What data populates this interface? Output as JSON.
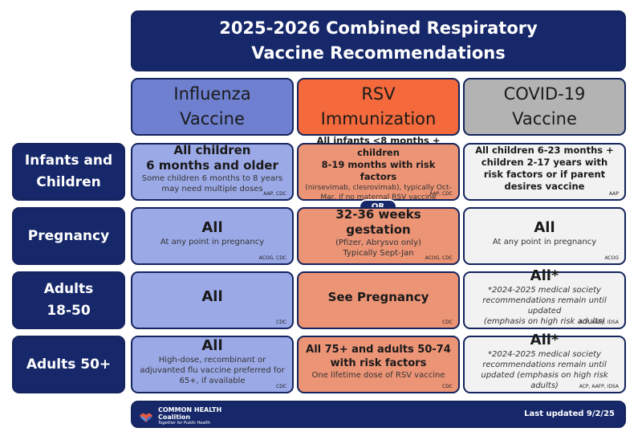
{
  "title": {
    "line1": "2025-2026 Combined Respiratory",
    "line2": "Vaccine Recommendations"
  },
  "columns": [
    {
      "line1": "Influenza",
      "line2": "Vaccine",
      "color": "#6e80cf"
    },
    {
      "line1": "RSV",
      "line2": "Immunization",
      "color": "#f46a3c"
    },
    {
      "line1": "COVID-19",
      "line2": "Vaccine",
      "color": "#b3b3b3"
    }
  ],
  "rows": [
    {
      "line1": "Infants and",
      "line2": "Children"
    },
    {
      "line1": "Pregnancy"
    },
    {
      "line1": "Adults",
      "line2": "18-50"
    },
    {
      "line1": "Adults 50+"
    }
  ],
  "cells": {
    "infants_flu": {
      "main1": "All children",
      "main2": "6 months and older",
      "sub1": "Some children 6 months to 8 years",
      "sub2": "may need multiple doses",
      "source": "AAP, CDC"
    },
    "infants_rsv": {
      "main1": "All infants <8 months + children",
      "main2": "8-19 months with risk factors",
      "sub1": "(nirsevimab, clesrovimab), typically Oct-",
      "sub2": "Mar, if no maternal RSV vaccine",
      "source": "AAP, CDC"
    },
    "infants_covid": {
      "main1": "All children 6-23 months +",
      "main2": "children 2-17 years with",
      "main3": "risk factors or if parent",
      "main4": "desires vaccine",
      "source": "AAP"
    },
    "or_label": "OR",
    "pregnancy_flu": {
      "main": "All",
      "sub": "At any point in pregnancy",
      "source": "ACOG, CDC"
    },
    "pregnancy_rsv": {
      "main": "32-36 weeks gestation",
      "sub1": "(Pfizer, Abrysvo only)",
      "sub2": "Typically Sept-Jan",
      "source": "ACOG, CDC"
    },
    "pregnancy_covid": {
      "main": "All",
      "sub": "At any point in pregnancy",
      "source": "ACOG"
    },
    "adults1850_flu": {
      "main": "All",
      "source": "CDC"
    },
    "adults1850_rsv": {
      "main": "See Pregnancy",
      "source": "CDC"
    },
    "adults1850_covid": {
      "main": "All*",
      "note1": "*2024-2025 medical society",
      "note2": "recommendations remain until updated",
      "note3": "(emphasis on high risk adults)",
      "source": "ACP, AAFP, IDSA"
    },
    "adults50_flu": {
      "main": "All",
      "sub1": "High-dose, recombinant or",
      "sub2": "adjuvanted flu vaccine preferred for",
      "sub3": "65+, if available",
      "source": "CDC"
    },
    "adults50_rsv": {
      "main1": "All 75+ and adults 50-74",
      "main2": "with risk factors",
      "sub": "One lifetime dose of RSV vaccine",
      "source": "CDC"
    },
    "adults50_covid": {
      "main": "All*",
      "note1": "*2024-2025 medical society",
      "note2": "recommendations remain until",
      "note3": "updated (emphasis on high risk adults)",
      "source": "ACP, AAFP, IDSA"
    }
  },
  "footer": {
    "logo_name1": "COMMON HEALTH",
    "logo_name2": "Coalition",
    "logo_tagline": "Together for Public Health",
    "logo_icon": "hands-heart-icon",
    "updated": "Last updated 9/2/25"
  },
  "colors": {
    "navy": "#16286a",
    "flu_cell": "#9ba9e7",
    "rsv_cell": "#ec9476",
    "covid_cell": "#f2f2f2"
  }
}
